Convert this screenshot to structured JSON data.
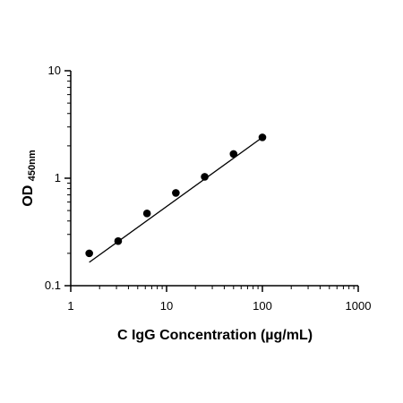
{
  "chart_data": {
    "type": "scatter",
    "x_scale": "log",
    "y_scale": "log",
    "xlabel": "C IgG Concentration (µg/mL)",
    "ylabel_main": "OD",
    "ylabel_sub": "450nm",
    "xlim": [
      1,
      1000
    ],
    "ylim": [
      0.1,
      10
    ],
    "xticks": [
      {
        "value": 1,
        "label": "1"
      },
      {
        "value": 10,
        "label": "10"
      },
      {
        "value": 100,
        "label": "100"
      },
      {
        "value": 1000,
        "label": "1000"
      }
    ],
    "yticks": [
      {
        "value": 0.1,
        "label": "0.1"
      },
      {
        "value": 1,
        "label": "1"
      },
      {
        "value": 10,
        "label": "10"
      }
    ],
    "grid": false,
    "series": [
      {
        "points": [
          {
            "x": 1.56,
            "y": 0.2
          },
          {
            "x": 3.125,
            "y": 0.26
          },
          {
            "x": 6.25,
            "y": 0.47
          },
          {
            "x": 12.5,
            "y": 0.73
          },
          {
            "x": 25,
            "y": 1.03
          },
          {
            "x": 50,
            "y": 1.68
          },
          {
            "x": 100,
            "y": 2.4
          }
        ],
        "fit_line": {
          "x_start": 1.56,
          "x_end": 100,
          "y_start": 0.165,
          "y_end": 2.4
        }
      }
    ],
    "style": {
      "axis_color": "#000000",
      "marker_color": "#000000",
      "line_color": "#000000"
    }
  }
}
